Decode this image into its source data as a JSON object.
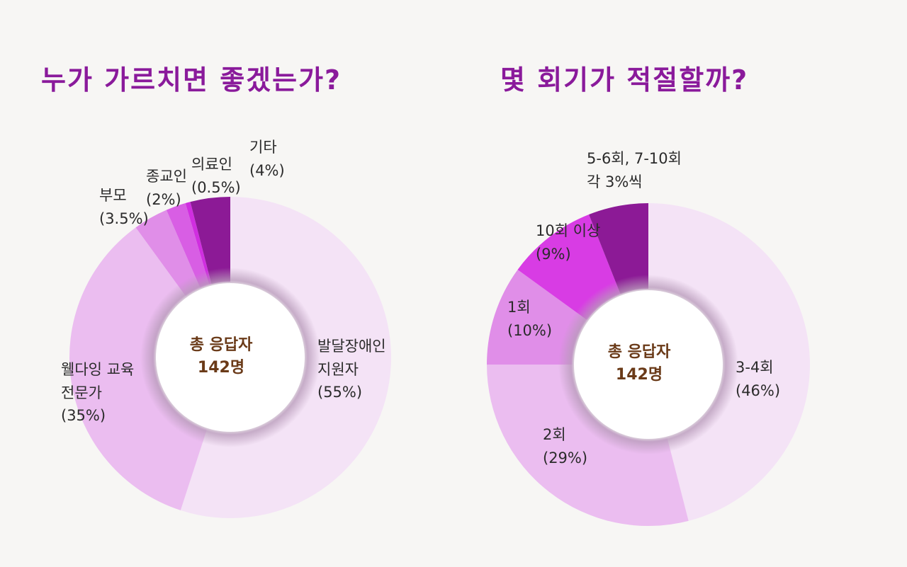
{
  "chart_data": [
    {
      "type": "pie",
      "variant": "donut",
      "title": "누가 가르치면 좋겠는가?",
      "center_label": [
        "총 응답자",
        "142명"
      ],
      "slices": [
        {
          "label": [
            "발달장애인",
            "지원자",
            "(55%)"
          ],
          "value": 55,
          "color": "#f4e3f6"
        },
        {
          "label": [
            "웰다잉 교육",
            "전문가",
            "(35%)"
          ],
          "value": 35,
          "color": "#ebbdf0"
        },
        {
          "label": [
            "부모",
            "(3.5%)"
          ],
          "value": 3.5,
          "color": "#e08ee8"
        },
        {
          "label": [
            "종교인",
            "(2%)"
          ],
          "value": 2,
          "color": "#d85ee4"
        },
        {
          "label": [
            "의료인",
            "(0.5%)"
          ],
          "value": 0.5,
          "color": "#d02ee0"
        },
        {
          "label": [
            "기타",
            "(4%)"
          ],
          "value": 4,
          "color": "#8c1a96"
        }
      ]
    },
    {
      "type": "pie",
      "variant": "donut",
      "title": "몇 회기가 적절할까?",
      "center_label": [
        "총 응답자",
        "142명"
      ],
      "slices": [
        {
          "label": [
            "3-4회",
            "(46%)"
          ],
          "value": 46,
          "color": "#f4e3f6"
        },
        {
          "label": [
            "2회",
            "(29%)"
          ],
          "value": 29,
          "color": "#ebbdf0"
        },
        {
          "label": [
            "1회",
            "(10%)"
          ],
          "value": 10,
          "color": "#e08ee8"
        },
        {
          "label": [
            "10회 이상",
            "(9%)"
          ],
          "value": 9,
          "color": "#d83ce4"
        },
        {
          "label": [
            "5-6회, 7-10회",
            "각 3%씩"
          ],
          "value": 6,
          "color": "#8c1a96"
        }
      ]
    }
  ]
}
